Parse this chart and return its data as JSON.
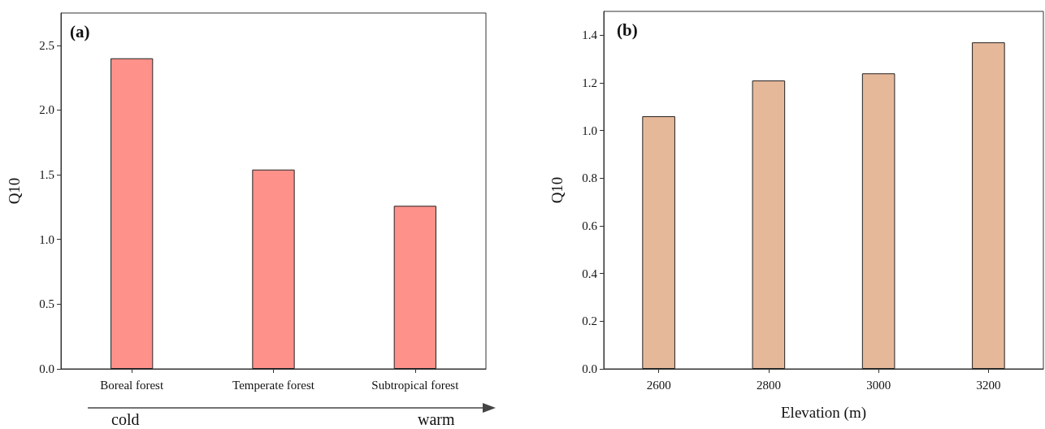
{
  "chart_data": [
    {
      "type": "bar",
      "ylabel": "Q10",
      "categories": [
        "Boreal forest",
        "Temperate forest",
        "Subtropical forest"
      ],
      "values": [
        2.4,
        1.54,
        1.26
      ],
      "color": "#fe918a",
      "ylim": [
        0,
        2.75
      ],
      "yticks": [
        {
          "value": 0,
          "label": "0.0"
        },
        0.5,
        {
          "value": 1,
          "label": "1.0"
        },
        1.5,
        {
          "value": 2,
          "label": "2.0"
        },
        2.5
      ],
      "grid": false,
      "annotations": [
        "(a)",
        "cold",
        "warm"
      ]
    },
    {
      "type": "bar",
      "ylabel": "Q10",
      "xlabel": "Elevation (m)",
      "categories": [
        "2600",
        "2800",
        "3000",
        "3200"
      ],
      "values": [
        1.06,
        1.21,
        1.24,
        1.37
      ],
      "color": "#e6b89a",
      "ylim": [
        0,
        1.5
      ],
      "yticks": [
        {
          "value": 0,
          "label": "0.0"
        },
        0.2,
        0.4,
        0.6,
        0.8,
        {
          "value": 1,
          "label": "1.0"
        },
        1.2,
        1.4
      ],
      "grid": false,
      "annotations": [
        "(b)"
      ]
    }
  ]
}
